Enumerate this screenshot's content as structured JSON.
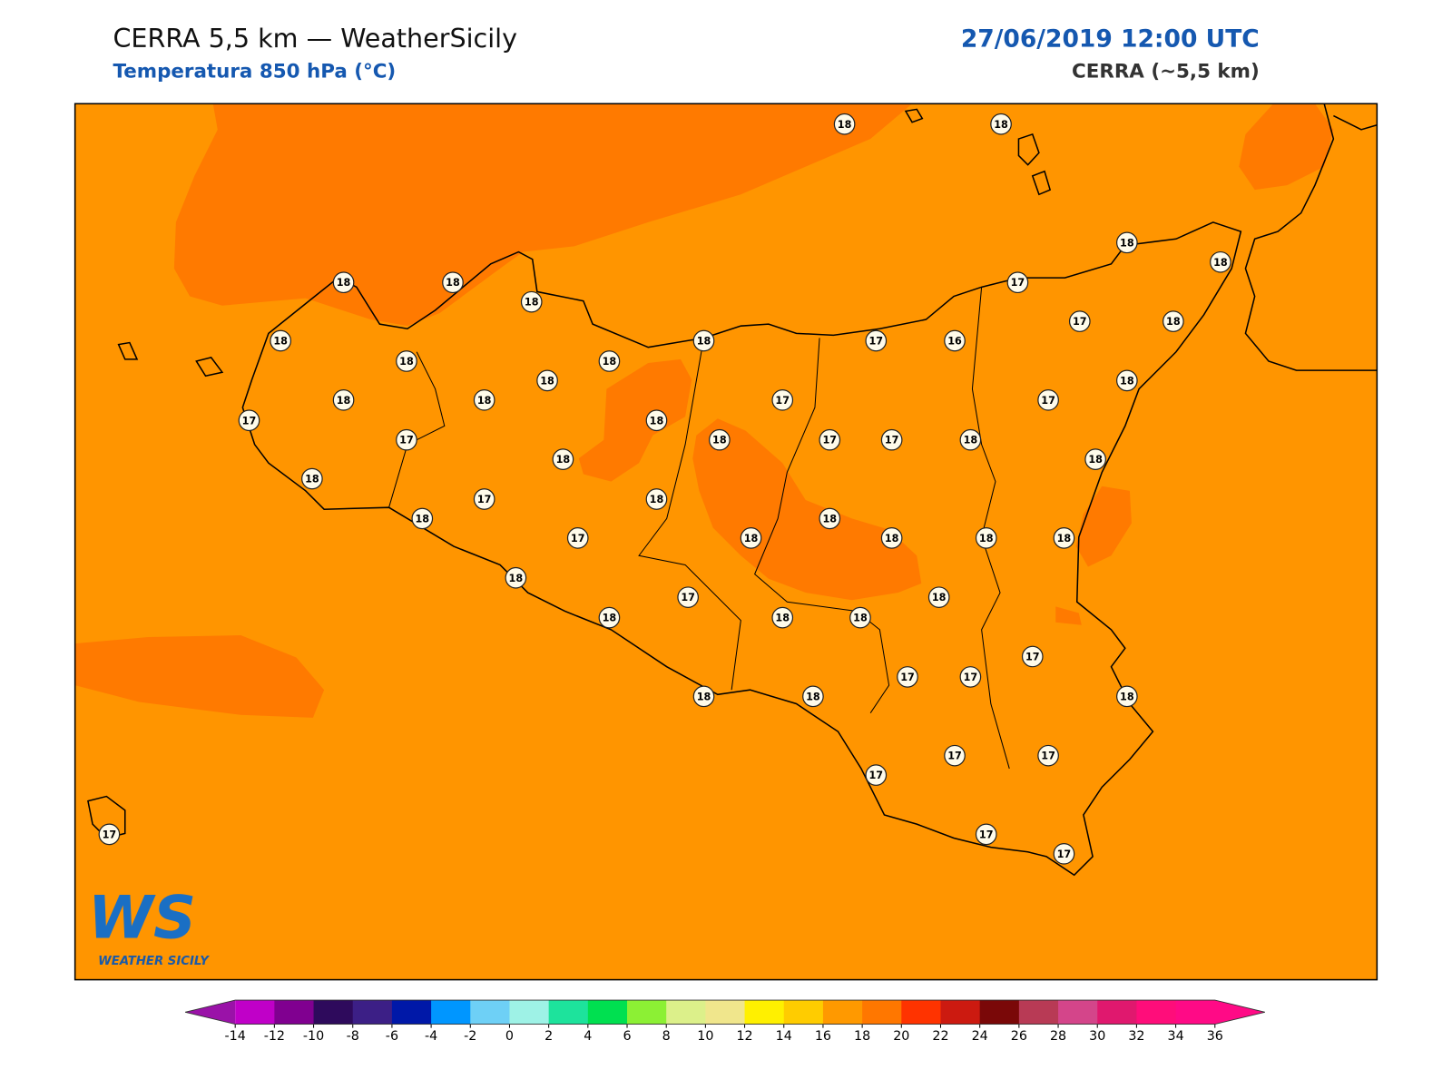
{
  "header": {
    "title": "CERRA 5,5 km — WeatherSicily",
    "subtitle": "Temperatura 850 hPa (°C)",
    "date": "27/06/2019 12:00 UTC",
    "model": "CERRA (~5,5 km)"
  },
  "map": {
    "stations": [
      18,
      18,
      18,
      18,
      18,
      18,
      18,
      17,
      17,
      18,
      18,
      18,
      17,
      16,
      18,
      18,
      18,
      18,
      18,
      18,
      17,
      17,
      17,
      18,
      17,
      18,
      17,
      17,
      18,
      18,
      18,
      18,
      17,
      18,
      18,
      18,
      17,
      18,
      18,
      18,
      18,
      18,
      17,
      18,
      18,
      18,
      18,
      17,
      17,
      17,
      18,
      18,
      18,
      17,
      17,
      17,
      17,
      17,
      17
    ]
  },
  "logo": {
    "mark": "WS",
    "name": "WEATHER SICILY"
  },
  "colorbar": {
    "ticks": [
      -14,
      -12,
      -10,
      -8,
      -6,
      -4,
      -2,
      0,
      2,
      4,
      6,
      8,
      10,
      12,
      14,
      16,
      18,
      20,
      22,
      24,
      26,
      28,
      30,
      32,
      34,
      36
    ],
    "under": "#9a12a8",
    "over": "#ff0a86",
    "colors": [
      "#c000c8",
      "#800090",
      "#2e0a5c",
      "#3c1f86",
      "#0018a8",
      "#0096ff",
      "#6ed0f6",
      "#9ef2e6",
      "#1de39c",
      "#00e050",
      "#8cf034",
      "#dcf08a",
      "#f0e68c",
      "#fff000",
      "#ffcc00",
      "#ff9900",
      "#ff7700",
      "#ff3300",
      "#cc1a10",
      "#7a0808",
      "#b83a55",
      "#d4458a",
      "#e0186e",
      "#ff0d7a",
      "#ff0a86"
    ]
  }
}
